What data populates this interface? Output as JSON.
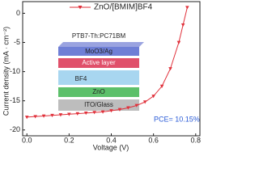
{
  "chart_data": {
    "type": "line",
    "x_label": "Voltage (V)",
    "y_label": "Current density (mA · cm⁻²)",
    "xlim": [
      -0.02,
      0.82
    ],
    "xticks": [
      {
        "value": 0,
        "label": "0.0"
      },
      0.2,
      0.4,
      0.6,
      0.8
    ],
    "ylim": [
      -21,
      2
    ],
    "yticks": [
      0,
      -5,
      -10,
      -15,
      -20
    ],
    "series": [
      {
        "name": "ZnO/[BMIM]BF4",
        "color": "#e0303a",
        "x": [
          0,
          0.04,
          0.08,
          0.12,
          0.16,
          0.2,
          0.24,
          0.28,
          0.32,
          0.36,
          0.4,
          0.44,
          0.48,
          0.52,
          0.56,
          0.6,
          0.64,
          0.68,
          0.72,
          0.74,
          0.76
        ],
        "values": [
          -17.8,
          -17.7,
          -17.6,
          -17.5,
          -17.4,
          -17.3,
          -17.2,
          -17.1,
          -17.0,
          -16.9,
          -16.7,
          -16.5,
          -16.2,
          -15.8,
          -15.2,
          -14.2,
          -12.5,
          -9.5,
          -5.0,
          -2.0,
          1.0
        ]
      }
    ],
    "annotation": {
      "text": "PCE= 10.15%",
      "color": "#2a5bd7"
    },
    "inset": {
      "title": "PTB7-Th:PC71BM",
      "layers": [
        "MoO3/Ag",
        "Active layer",
        "BF4",
        "ZnO",
        "ITO/Glass"
      ]
    }
  }
}
